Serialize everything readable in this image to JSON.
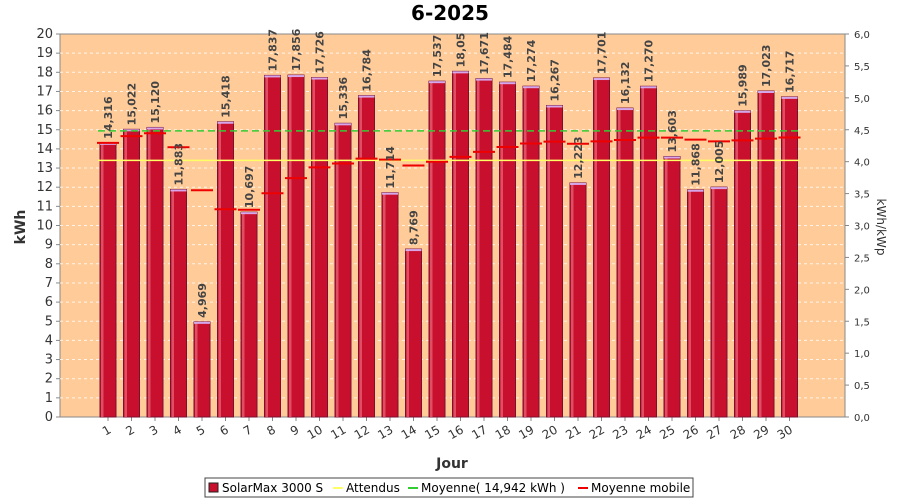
{
  "chart_data": {
    "type": "bar",
    "title": "6-2025",
    "xlabel": "Jour",
    "ylabel": "kWh",
    "y2label": "kWh/kWp",
    "ylim": [
      0,
      20
    ],
    "y2lim": [
      0,
      6.0
    ],
    "y2ticks": [
      "0,0",
      "0,5",
      "1,0",
      "1,5",
      "2,0",
      "2,5",
      "3,0",
      "3,5",
      "4,0",
      "4,5",
      "5,0",
      "5,5",
      "6,0"
    ],
    "categories": [
      "1",
      "2",
      "3",
      "4",
      "5",
      "6",
      "7",
      "8",
      "9",
      "10",
      "11",
      "12",
      "13",
      "14",
      "15",
      "16",
      "17",
      "18",
      "19",
      "20",
      "21",
      "22",
      "23",
      "24",
      "25",
      "26",
      "27",
      "28",
      "29",
      "30"
    ],
    "series": [
      {
        "name": "SolarMax 3000 S",
        "type": "bar",
        "color": "#c8102e",
        "values": [
          14.316,
          15.022,
          15.12,
          11.883,
          4.969,
          15.418,
          10.697,
          17.837,
          17.856,
          17.726,
          15.336,
          16.784,
          11.714,
          8.769,
          17.537,
          18.05,
          17.671,
          17.484,
          17.274,
          16.267,
          12.223,
          17.701,
          16.132,
          17.27,
          13.603,
          11.868,
          12.005,
          15.989,
          17.023,
          16.717
        ],
        "labels": [
          "14,316",
          "15,022",
          "15,120",
          "11,883",
          "4,969",
          "15,418",
          "10,697",
          "17,837",
          "17,856",
          "17,726",
          "15,336",
          "16,784",
          "11,714",
          "8,769",
          "17,537",
          "18,05",
          "17,671",
          "17,484",
          "17,274",
          "16,267",
          "12,223",
          "17,701",
          "16,132",
          "17,270",
          "13,603",
          "11,868",
          "12,005",
          "15,989",
          "17,023",
          "16,717"
        ]
      },
      {
        "name": "Attendus",
        "type": "line",
        "color": "#ffff66",
        "value": 13.4
      },
      {
        "name": "Moyenne( 14,942 kWh )",
        "type": "dashed-line",
        "color": "#33cc33",
        "value": 14.942
      },
      {
        "name": "Moyenne mobile",
        "type": "step",
        "color": "#ee0000",
        "values": [
          14.316,
          14.669,
          14.819,
          14.085,
          11.842,
          10.848,
          10.825,
          11.687,
          12.473,
          13.036,
          13.239,
          13.492,
          13.442,
          13.136,
          13.329,
          13.582,
          13.842,
          14.099,
          14.28,
          14.377,
          14.272,
          14.392,
          14.466,
          14.59,
          14.586,
          14.482,
          14.39,
          14.447,
          14.535,
          14.594
        ]
      }
    ],
    "legend": "bottom",
    "grid": true
  }
}
